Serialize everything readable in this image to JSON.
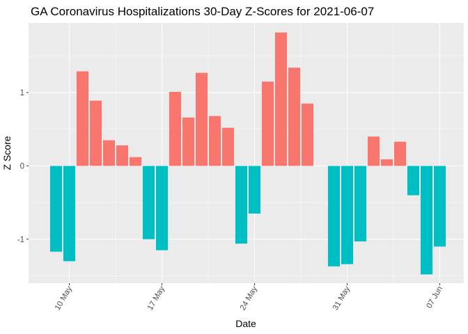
{
  "chart_data": {
    "type": "bar",
    "title": "GA Coronavirus Hospitalizations 30-Day Z-Scores for 2021-06-07",
    "xlabel": "Date",
    "ylabel": "Z Score",
    "x_tick_labels": [
      "10 May",
      "17 May",
      "24 May",
      "31 May",
      "07 Jun"
    ],
    "y_tick_labels": [
      "-1",
      "0",
      "1"
    ],
    "y_ticks": [
      -1,
      0,
      1
    ],
    "ylim": [
      -1.6,
      1.95
    ],
    "x": [
      "2021-05-09",
      "2021-05-10",
      "2021-05-11",
      "2021-05-12",
      "2021-05-13",
      "2021-05-14",
      "2021-05-15",
      "2021-05-16",
      "2021-05-17",
      "2021-05-18",
      "2021-05-19",
      "2021-05-20",
      "2021-05-21",
      "2021-05-22",
      "2021-05-23",
      "2021-05-24",
      "2021-05-25",
      "2021-05-26",
      "2021-05-27",
      "2021-05-28",
      "2021-05-29",
      "2021-05-30",
      "2021-05-31",
      "2021-06-01",
      "2021-06-02",
      "2021-06-03",
      "2021-06-04",
      "2021-06-05",
      "2021-06-06",
      "2021-06-07"
    ],
    "values": [
      -1.17,
      -1.3,
      1.29,
      0.89,
      0.35,
      0.28,
      0.12,
      -1.0,
      -1.15,
      1.01,
      0.66,
      1.27,
      0.68,
      0.52,
      -1.06,
      -0.65,
      1.15,
      1.82,
      1.34,
      0.85,
      0.0,
      -1.37,
      -1.34,
      -1.03,
      0.4,
      0.09,
      0.33,
      -0.4,
      -1.48,
      -1.1
    ],
    "colors": {
      "positive": "#F8766D",
      "negative": "#00BFC4"
    },
    "panel_background": "#EBEBEB",
    "grid": true,
    "legend": "none"
  }
}
